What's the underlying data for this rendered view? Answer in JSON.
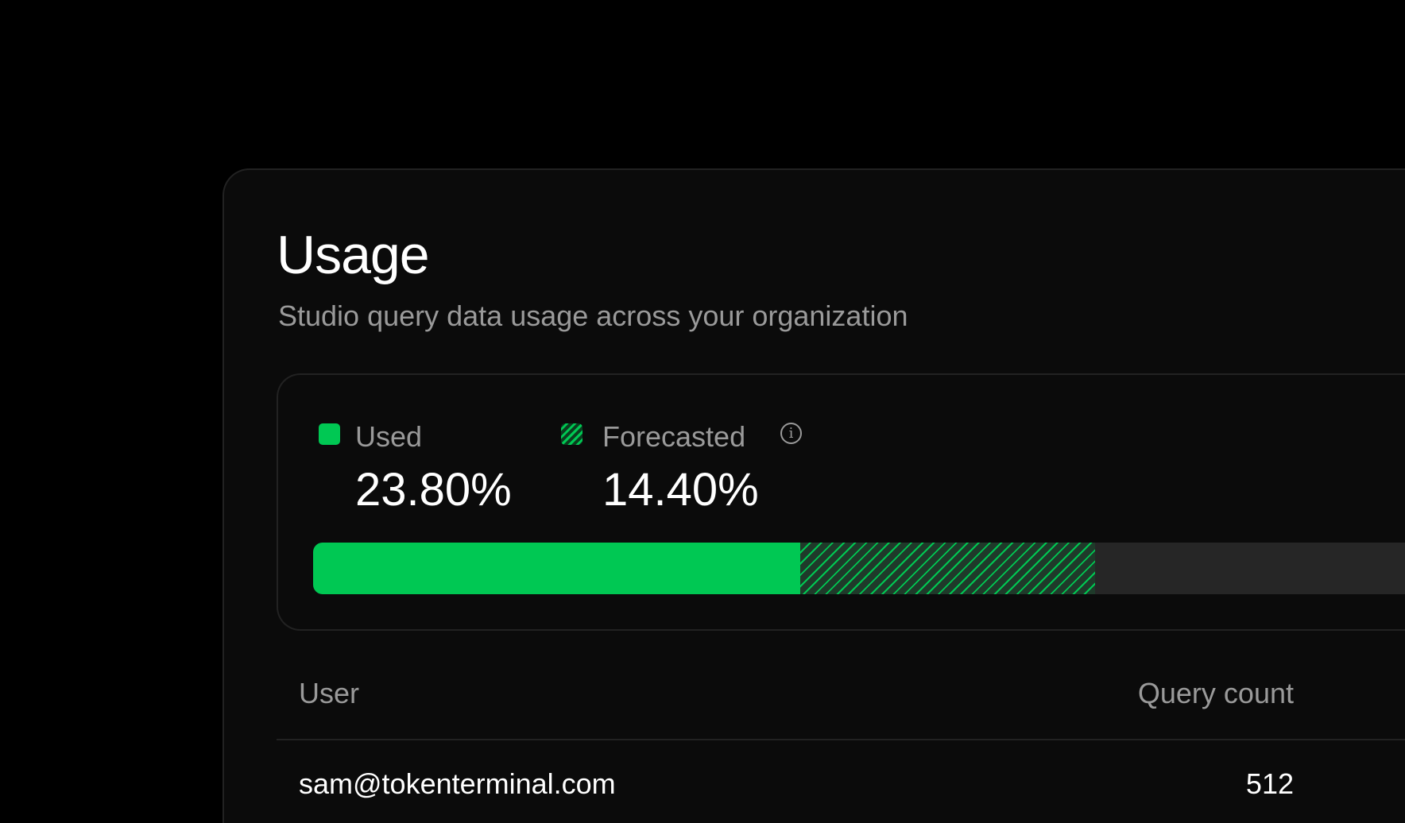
{
  "header": {
    "title": "Usage",
    "subtitle": "Studio query data usage across your organization"
  },
  "usage": {
    "used": {
      "label": "Used",
      "value": "23.80%",
      "percent": 23.8,
      "color": "#00c853"
    },
    "forecasted": {
      "label": "Forecasted",
      "value": "14.40%",
      "percent": 14.4,
      "info_icon": "info-icon"
    }
  },
  "table": {
    "columns": [
      "User",
      "Query count"
    ],
    "rows": [
      {
        "user": "sam@tokenterminal.com",
        "count": "512"
      }
    ]
  }
}
